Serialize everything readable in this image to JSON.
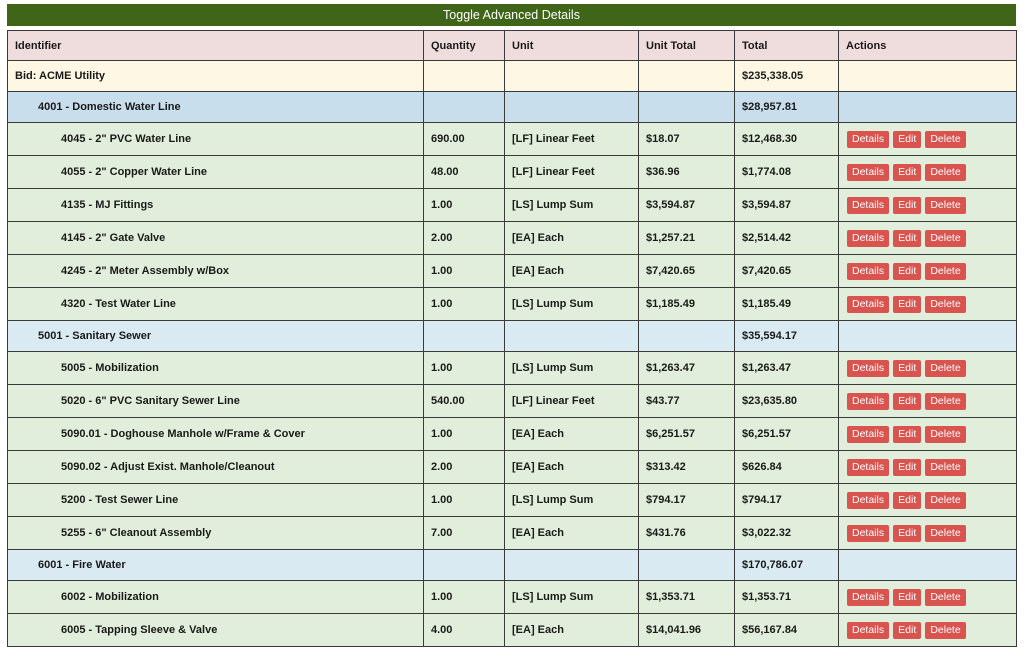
{
  "toggle_label": "Toggle Advanced Details",
  "headers": {
    "identifier": "Identifier",
    "quantity": "Quantity",
    "unit": "Unit",
    "unit_total": "Unit Total",
    "total": "Total",
    "actions": "Actions"
  },
  "actions": {
    "details": "Details",
    "edit": "Edit",
    "delete": "Delete"
  },
  "bid": {
    "identifier": "Bid: ACME Utility",
    "total": "$235,338.05"
  },
  "groups": [
    {
      "identifier": "4001 - Domestic Water Line",
      "total": "$28,957.81",
      "items": [
        {
          "identifier": "4045 - 2\" PVC Water Line",
          "quantity": "690.00",
          "unit": "[LF] Linear Feet",
          "unit_total": "$18.07",
          "total": "$12,468.30"
        },
        {
          "identifier": "4055 - 2\" Copper Water Line",
          "quantity": "48.00",
          "unit": "[LF] Linear Feet",
          "unit_total": "$36.96",
          "total": "$1,774.08"
        },
        {
          "identifier": "4135 - MJ Fittings",
          "quantity": "1.00",
          "unit": "[LS] Lump Sum",
          "unit_total": "$3,594.87",
          "total": "$3,594.87"
        },
        {
          "identifier": "4145 - 2\" Gate Valve",
          "quantity": "2.00",
          "unit": "[EA] Each",
          "unit_total": "$1,257.21",
          "total": "$2,514.42"
        },
        {
          "identifier": "4245 - 2\" Meter Assembly w/Box",
          "quantity": "1.00",
          "unit": "[EA] Each",
          "unit_total": "$7,420.65",
          "total": "$7,420.65"
        },
        {
          "identifier": "4320 - Test Water Line",
          "quantity": "1.00",
          "unit": "[LS] Lump Sum",
          "unit_total": "$1,185.49",
          "total": "$1,185.49"
        }
      ]
    },
    {
      "identifier": "5001 - Sanitary Sewer",
      "total": "$35,594.17",
      "items": [
        {
          "identifier": "5005 - Mobilization",
          "quantity": "1.00",
          "unit": "[LS] Lump Sum",
          "unit_total": "$1,263.47",
          "total": "$1,263.47"
        },
        {
          "identifier": "5020 - 6\" PVC Sanitary Sewer Line",
          "quantity": "540.00",
          "unit": "[LF] Linear Feet",
          "unit_total": "$43.77",
          "total": "$23,635.80"
        },
        {
          "identifier": "5090.01 - Doghouse Manhole w/Frame & Cover",
          "quantity": "1.00",
          "unit": "[EA] Each",
          "unit_total": "$6,251.57",
          "total": "$6,251.57"
        },
        {
          "identifier": "5090.02 - Adjust Exist. Manhole/Cleanout",
          "quantity": "2.00",
          "unit": "[EA] Each",
          "unit_total": "$313.42",
          "total": "$626.84"
        },
        {
          "identifier": "5200 - Test Sewer Line",
          "quantity": "1.00",
          "unit": "[LS] Lump Sum",
          "unit_total": "$794.17",
          "total": "$794.17"
        },
        {
          "identifier": "5255 - 6\" Cleanout Assembly",
          "quantity": "7.00",
          "unit": "[EA] Each",
          "unit_total": "$431.76",
          "total": "$3,022.32"
        }
      ]
    },
    {
      "identifier": "6001 - Fire Water",
      "total": "$170,786.07",
      "items": [
        {
          "identifier": "6002 - Mobilization",
          "quantity": "1.00",
          "unit": "[LS] Lump Sum",
          "unit_total": "$1,353.71",
          "total": "$1,353.71"
        },
        {
          "identifier": "6005 - Tapping Sleeve & Valve",
          "quantity": "4.00",
          "unit": "[EA] Each",
          "unit_total": "$14,041.96",
          "total": "$56,167.84"
        }
      ]
    }
  ],
  "colors": {
    "toggle_bar": "#3f6519",
    "header_bg": "#efdcdc",
    "bid_row_bg": "#fdf7e3",
    "group_row_bg": "#daeaf3",
    "item_row_bg": "#e1eedb",
    "action_button": "#d9534f"
  }
}
